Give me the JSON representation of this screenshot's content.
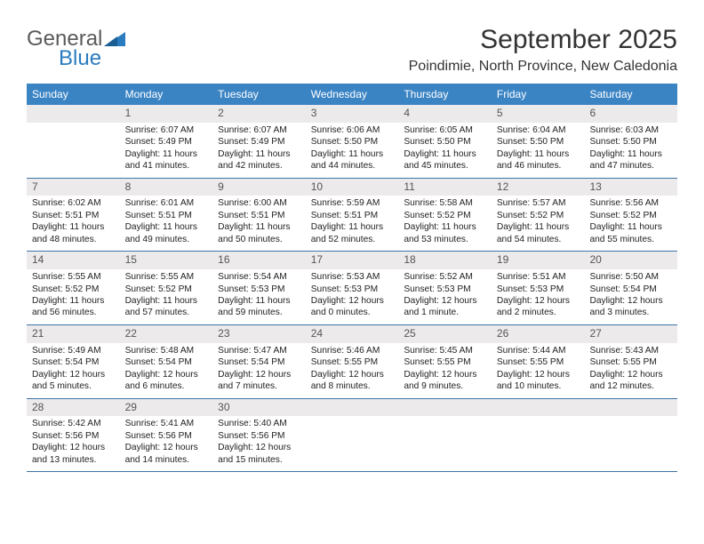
{
  "logo": {
    "general": "General",
    "blue": "Blue"
  },
  "title": "September 2025",
  "location": "Poindimie, North Province, New Caledonia",
  "colors": {
    "header_bg": "#3b84c4",
    "header_text": "#ffffff",
    "daynum_bg": "#eceaea",
    "week_border": "#3b76a8",
    "logo_gray": "#5a5a5a",
    "logo_blue": "#2b7bbf",
    "body_text": "#222222"
  },
  "dow": [
    "Sunday",
    "Monday",
    "Tuesday",
    "Wednesday",
    "Thursday",
    "Friday",
    "Saturday"
  ],
  "weeks": [
    [
      null,
      {
        "n": "1",
        "sr": "Sunrise: 6:07 AM",
        "ss": "Sunset: 5:49 PM",
        "dl": "Daylight: 11 hours and 41 minutes."
      },
      {
        "n": "2",
        "sr": "Sunrise: 6:07 AM",
        "ss": "Sunset: 5:49 PM",
        "dl": "Daylight: 11 hours and 42 minutes."
      },
      {
        "n": "3",
        "sr": "Sunrise: 6:06 AM",
        "ss": "Sunset: 5:50 PM",
        "dl": "Daylight: 11 hours and 44 minutes."
      },
      {
        "n": "4",
        "sr": "Sunrise: 6:05 AM",
        "ss": "Sunset: 5:50 PM",
        "dl": "Daylight: 11 hours and 45 minutes."
      },
      {
        "n": "5",
        "sr": "Sunrise: 6:04 AM",
        "ss": "Sunset: 5:50 PM",
        "dl": "Daylight: 11 hours and 46 minutes."
      },
      {
        "n": "6",
        "sr": "Sunrise: 6:03 AM",
        "ss": "Sunset: 5:50 PM",
        "dl": "Daylight: 11 hours and 47 minutes."
      }
    ],
    [
      {
        "n": "7",
        "sr": "Sunrise: 6:02 AM",
        "ss": "Sunset: 5:51 PM",
        "dl": "Daylight: 11 hours and 48 minutes."
      },
      {
        "n": "8",
        "sr": "Sunrise: 6:01 AM",
        "ss": "Sunset: 5:51 PM",
        "dl": "Daylight: 11 hours and 49 minutes."
      },
      {
        "n": "9",
        "sr": "Sunrise: 6:00 AM",
        "ss": "Sunset: 5:51 PM",
        "dl": "Daylight: 11 hours and 50 minutes."
      },
      {
        "n": "10",
        "sr": "Sunrise: 5:59 AM",
        "ss": "Sunset: 5:51 PM",
        "dl": "Daylight: 11 hours and 52 minutes."
      },
      {
        "n": "11",
        "sr": "Sunrise: 5:58 AM",
        "ss": "Sunset: 5:52 PM",
        "dl": "Daylight: 11 hours and 53 minutes."
      },
      {
        "n": "12",
        "sr": "Sunrise: 5:57 AM",
        "ss": "Sunset: 5:52 PM",
        "dl": "Daylight: 11 hours and 54 minutes."
      },
      {
        "n": "13",
        "sr": "Sunrise: 5:56 AM",
        "ss": "Sunset: 5:52 PM",
        "dl": "Daylight: 11 hours and 55 minutes."
      }
    ],
    [
      {
        "n": "14",
        "sr": "Sunrise: 5:55 AM",
        "ss": "Sunset: 5:52 PM",
        "dl": "Daylight: 11 hours and 56 minutes."
      },
      {
        "n": "15",
        "sr": "Sunrise: 5:55 AM",
        "ss": "Sunset: 5:52 PM",
        "dl": "Daylight: 11 hours and 57 minutes."
      },
      {
        "n": "16",
        "sr": "Sunrise: 5:54 AM",
        "ss": "Sunset: 5:53 PM",
        "dl": "Daylight: 11 hours and 59 minutes."
      },
      {
        "n": "17",
        "sr": "Sunrise: 5:53 AM",
        "ss": "Sunset: 5:53 PM",
        "dl": "Daylight: 12 hours and 0 minutes."
      },
      {
        "n": "18",
        "sr": "Sunrise: 5:52 AM",
        "ss": "Sunset: 5:53 PM",
        "dl": "Daylight: 12 hours and 1 minute."
      },
      {
        "n": "19",
        "sr": "Sunrise: 5:51 AM",
        "ss": "Sunset: 5:53 PM",
        "dl": "Daylight: 12 hours and 2 minutes."
      },
      {
        "n": "20",
        "sr": "Sunrise: 5:50 AM",
        "ss": "Sunset: 5:54 PM",
        "dl": "Daylight: 12 hours and 3 minutes."
      }
    ],
    [
      {
        "n": "21",
        "sr": "Sunrise: 5:49 AM",
        "ss": "Sunset: 5:54 PM",
        "dl": "Daylight: 12 hours and 5 minutes."
      },
      {
        "n": "22",
        "sr": "Sunrise: 5:48 AM",
        "ss": "Sunset: 5:54 PM",
        "dl": "Daylight: 12 hours and 6 minutes."
      },
      {
        "n": "23",
        "sr": "Sunrise: 5:47 AM",
        "ss": "Sunset: 5:54 PM",
        "dl": "Daylight: 12 hours and 7 minutes."
      },
      {
        "n": "24",
        "sr": "Sunrise: 5:46 AM",
        "ss": "Sunset: 5:55 PM",
        "dl": "Daylight: 12 hours and 8 minutes."
      },
      {
        "n": "25",
        "sr": "Sunrise: 5:45 AM",
        "ss": "Sunset: 5:55 PM",
        "dl": "Daylight: 12 hours and 9 minutes."
      },
      {
        "n": "26",
        "sr": "Sunrise: 5:44 AM",
        "ss": "Sunset: 5:55 PM",
        "dl": "Daylight: 12 hours and 10 minutes."
      },
      {
        "n": "27",
        "sr": "Sunrise: 5:43 AM",
        "ss": "Sunset: 5:55 PM",
        "dl": "Daylight: 12 hours and 12 minutes."
      }
    ],
    [
      {
        "n": "28",
        "sr": "Sunrise: 5:42 AM",
        "ss": "Sunset: 5:56 PM",
        "dl": "Daylight: 12 hours and 13 minutes."
      },
      {
        "n": "29",
        "sr": "Sunrise: 5:41 AM",
        "ss": "Sunset: 5:56 PM",
        "dl": "Daylight: 12 hours and 14 minutes."
      },
      {
        "n": "30",
        "sr": "Sunrise: 5:40 AM",
        "ss": "Sunset: 5:56 PM",
        "dl": "Daylight: 12 hours and 15 minutes."
      },
      null,
      null,
      null,
      null
    ]
  ]
}
